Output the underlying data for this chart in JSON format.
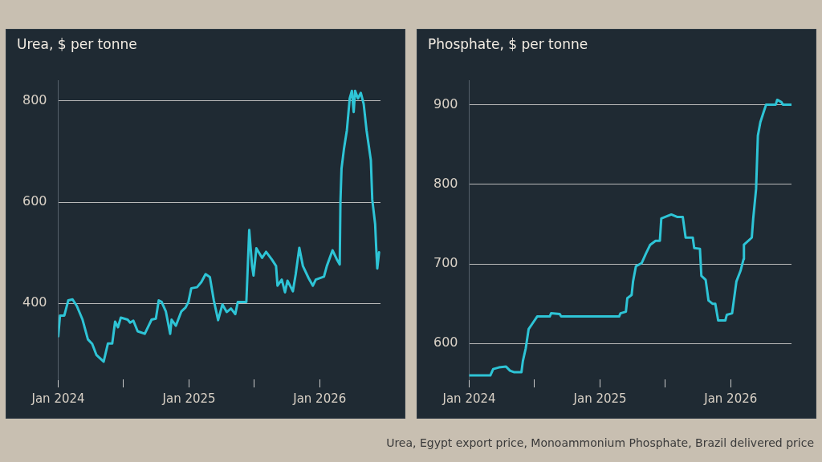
{
  "chart_data": [
    {
      "type": "line",
      "title": "Urea, $ per tonne",
      "xlim": [
        "2024-01-01",
        "2026-06-20"
      ],
      "ylim": [
        250,
        840
      ],
      "xticks": [
        {
          "value": "2024-01-01",
          "label": "Jan 2024"
        },
        {
          "value": "2024-07-01",
          "label": null
        },
        {
          "value": "2025-01-01",
          "label": "Jan 2025"
        },
        {
          "value": "2025-07-01",
          "label": null
        },
        {
          "value": "2026-01-01",
          "label": "Jan 2026"
        }
      ],
      "yticks": [
        400,
        600,
        800
      ],
      "grid": "y",
      "legend": false,
      "marker": "none",
      "line_style": "solid",
      "series": [
        {
          "color": "#2ec4d6",
          "x": [
            "2024-01-01",
            "2024-01-06",
            "2024-01-18",
            "2024-01-29",
            "2024-02-10",
            "2024-02-22",
            "2024-03-09",
            "2024-03-24",
            "2024-04-05",
            "2024-04-17",
            "2024-05-07",
            "2024-05-19",
            "2024-05-31",
            "2024-06-08",
            "2024-06-16",
            "2024-06-24",
            "2024-07-13",
            "2024-07-20",
            "2024-07-29",
            "2024-08-10",
            "2024-08-30",
            "2024-09-18",
            "2024-09-30",
            "2024-10-08",
            "2024-10-16",
            "2024-10-28",
            "2024-11-09",
            "2024-11-13",
            "2024-11-25",
            "2024-12-10",
            "2024-12-22",
            "2024-12-30",
            "2025-01-07",
            "2025-01-23",
            "2025-02-04",
            "2025-02-16",
            "2025-02-28",
            "2025-03-11",
            "2025-03-23",
            "2025-04-04",
            "2025-04-16",
            "2025-04-28",
            "2025-05-10",
            "2025-05-17",
            "2025-06-10",
            "2025-06-18",
            "2025-06-26",
            "2025-06-30",
            "2025-07-08",
            "2025-07-24",
            "2025-08-04",
            "2025-08-20",
            "2025-09-01",
            "2025-09-05",
            "2025-09-17",
            "2025-09-26",
            "2025-10-03",
            "2025-10-18",
            "2025-10-26",
            "2025-11-05",
            "2025-11-15",
            "2025-12-01",
            "2025-12-13",
            "2025-12-21",
            "2026-01-13",
            "2026-01-21",
            "2026-02-06",
            "2026-02-18",
            "2026-02-26",
            "2026-02-28",
            "2026-03-03",
            "2026-03-10",
            "2026-03-18",
            "2026-03-26",
            "2026-04-01",
            "2026-04-06",
            "2026-04-10",
            "2026-04-18",
            "2026-04-26",
            "2026-05-04",
            "2026-05-12",
            "2026-05-24",
            "2026-05-28",
            "2026-06-05",
            "2026-06-08",
            "2026-06-11",
            "2026-06-16"
          ],
          "values": [
            335,
            376,
            376,
            406,
            408,
            395,
            368,
            329,
            320,
            298,
            285,
            321,
            321,
            364,
            353,
            372,
            368,
            362,
            366,
            345,
            340,
            368,
            370,
            406,
            403,
            384,
            340,
            368,
            356,
            384,
            392,
            403,
            430,
            432,
            442,
            458,
            452,
            406,
            367,
            398,
            383,
            390,
            379,
            403,
            403,
            545,
            474,
            455,
            509,
            490,
            502,
            487,
            474,
            435,
            447,
            422,
            445,
            424,
            458,
            510,
            474,
            450,
            435,
            447,
            453,
            474,
            505,
            487,
            477,
            600,
            666,
            706,
            742,
            805,
            820,
            778,
            820,
            805,
            816,
            794,
            742,
            683,
            605,
            557,
            510,
            469,
            501
          ]
        }
      ]
    },
    {
      "type": "line",
      "title": "Phosphate, $ per tonne",
      "xlim": [
        "2024-01-01",
        "2026-06-20"
      ],
      "ylim": [
        555,
        930
      ],
      "xticks": [
        {
          "value": "2024-01-01",
          "label": "Jan 2024"
        },
        {
          "value": "2024-07-01",
          "label": null
        },
        {
          "value": "2025-01-01",
          "label": "Jan 2025"
        },
        {
          "value": "2025-07-01",
          "label": null
        },
        {
          "value": "2026-01-01",
          "label": "Jan 2026"
        }
      ],
      "yticks": [
        600,
        700,
        800,
        900
      ],
      "grid": "y",
      "legend": false,
      "marker": "none",
      "line_style": "solid",
      "annotations": [
        "Urea, Egypt export price, Monoammonium Phosphate, Brazil delivered price"
      ],
      "series": [
        {
          "color": "#2ec4d6",
          "x": [
            "2024-01-01",
            "2024-02-29",
            "2024-03-08",
            "2024-03-24",
            "2024-04-13",
            "2024-04-24",
            "2024-05-06",
            "2024-05-26",
            "2024-05-30",
            "2024-06-07",
            "2024-06-15",
            "2024-06-27",
            "2024-07-09",
            "2024-08-13",
            "2024-08-17",
            "2024-09-10",
            "2024-09-14",
            "2025-02-23",
            "2025-02-27",
            "2025-03-14",
            "2025-03-18",
            "2025-03-30",
            "2025-04-03",
            "2025-04-11",
            "2025-04-27",
            "2025-05-09",
            "2025-05-21",
            "2025-06-05",
            "2025-06-17",
            "2025-06-21",
            "2025-07-19",
            "2025-08-04",
            "2025-08-20",
            "2025-08-28",
            "2025-09-17",
            "2025-09-21",
            "2025-10-07",
            "2025-10-11",
            "2025-10-23",
            "2025-10-31",
            "2025-11-11",
            "2025-11-19",
            "2025-11-27",
            "2025-12-17",
            "2025-12-21",
            "2026-01-05",
            "2026-01-17",
            "2026-01-29",
            "2026-02-06",
            "2026-02-07",
            "2026-03-01",
            "2026-03-05",
            "2026-03-13",
            "2026-03-18",
            "2026-03-25",
            "2026-04-02",
            "2026-04-10",
            "2026-05-07",
            "2026-05-11",
            "2026-05-23",
            "2026-05-27",
            "2026-06-20"
          ],
          "values": [
            560,
            560,
            568,
            570,
            571,
            566,
            564,
            564,
            578,
            594,
            618,
            626,
            634,
            634,
            638,
            637,
            634,
            634,
            638,
            640,
            657,
            661,
            678,
            697,
            701,
            713,
            724,
            729,
            729,
            757,
            762,
            759,
            759,
            733,
            733,
            720,
            719,
            685,
            680,
            654,
            650,
            650,
            629,
            629,
            636,
            638,
            678,
            692,
            706,
            724,
            733,
            757,
            794,
            861,
            878,
            889,
            900,
            900,
            906,
            903,
            900,
            900
          ]
        }
      ]
    }
  ]
}
